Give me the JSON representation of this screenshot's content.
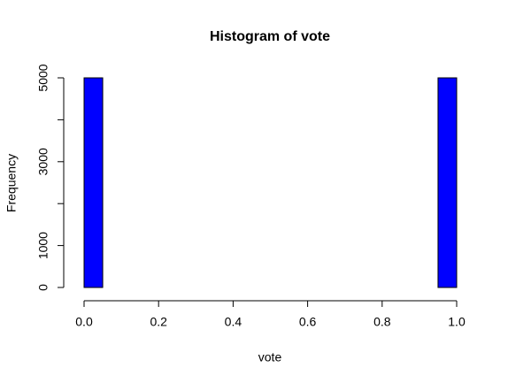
{
  "chart_data": {
    "type": "histogram",
    "title": "Histogram of vote",
    "xlabel": "vote",
    "ylabel": "Frequency",
    "bins": [
      0,
      0.05,
      0.1,
      0.15,
      0.2,
      0.25,
      0.3,
      0.35,
      0.4,
      0.45,
      0.5,
      0.55,
      0.6,
      0.65,
      0.7,
      0.75,
      0.8,
      0.85,
      0.9,
      0.95,
      1
    ],
    "values": [
      5000,
      0,
      0,
      0,
      0,
      0,
      0,
      0,
      0,
      0,
      0,
      0,
      0,
      0,
      0,
      0,
      0,
      0,
      0,
      5000
    ],
    "color": "#0000ff",
    "xlim": [
      0,
      1
    ],
    "xticks": [
      {
        "value": 0,
        "label": "0.0"
      },
      0.2,
      0.4,
      0.6,
      0.8,
      {
        "value": 1,
        "label": "1.0"
      }
    ],
    "ylim": [
      0,
      5000
    ],
    "yticks": [
      0,
      1000,
      2000,
      3000,
      4000,
      5000
    ]
  }
}
